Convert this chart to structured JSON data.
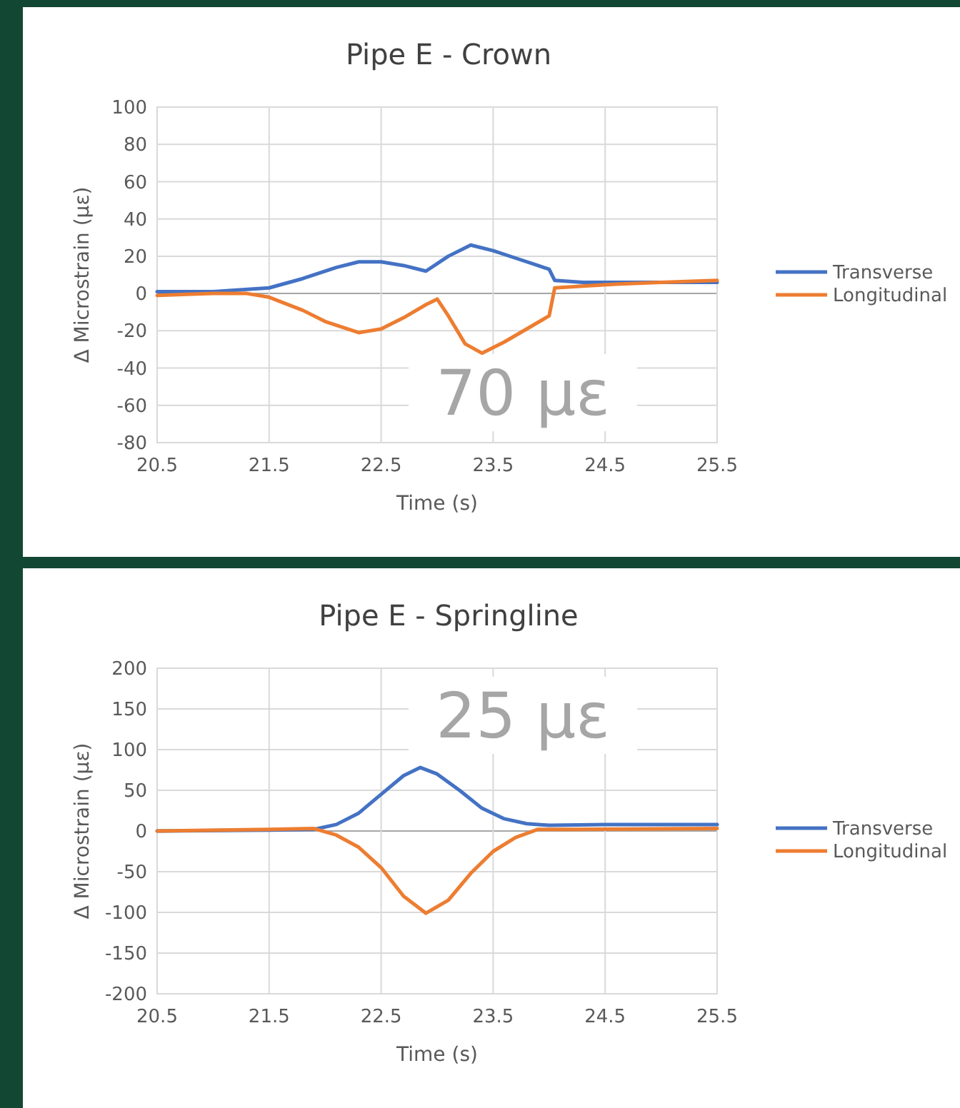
{
  "chart_data": [
    {
      "type": "line",
      "title": "Pipe E - Crown",
      "xlabel": "Time (s)",
      "ylabel": "Δ Microstrain (με)",
      "xlim": [
        20.5,
        25.5
      ],
      "xticks": [
        20.5,
        21.5,
        22.5,
        23.5,
        24.5,
        25.5
      ],
      "ylim": [
        -80,
        100
      ],
      "yticks": [
        -80,
        -60,
        -40,
        -20,
        0,
        20,
        40,
        60,
        80,
        100
      ],
      "grid": true,
      "legend": "right",
      "line_style": "solid",
      "marker": "none",
      "annotations": [
        "70 με"
      ],
      "series": [
        {
          "name": "Transverse",
          "color": "#4472c4",
          "x": [
            20.5,
            21,
            21.5,
            21.8,
            22.1,
            22.3,
            22.5,
            22.7,
            22.9,
            23.1,
            23.3,
            23.5,
            23.7,
            23.9,
            24,
            24.05,
            24.3,
            24.6,
            25,
            25.5
          ],
          "values": [
            1,
            1,
            3,
            8,
            14,
            17,
            17,
            15,
            12,
            20,
            26,
            23,
            19,
            15,
            13,
            7,
            6,
            6,
            6,
            6
          ]
        },
        {
          "name": "Longitudinal",
          "color": "#ed7d31",
          "x": [
            20.5,
            21,
            21.3,
            21.5,
            21.8,
            22,
            22.3,
            22.5,
            22.7,
            22.9,
            23,
            23.1,
            23.25,
            23.4,
            23.6,
            23.8,
            24,
            24.05,
            24.3,
            24.6,
            25,
            25.5
          ],
          "values": [
            -1,
            0,
            0,
            -2,
            -9,
            -15,
            -21,
            -19,
            -13,
            -6,
            -3,
            -12,
            -27,
            -32,
            -26,
            -19,
            -12,
            3,
            4,
            5,
            6,
            7
          ]
        }
      ]
    },
    {
      "type": "line",
      "title": "Pipe E - Springline",
      "xlabel": "Time (s)",
      "ylabel": "Δ Microstrain (με)",
      "xlim": [
        20.5,
        25.5
      ],
      "xticks": [
        20.5,
        21.5,
        22.5,
        23.5,
        24.5,
        25.5
      ],
      "ylim": [
        -200,
        200
      ],
      "yticks": [
        -200,
        -150,
        -100,
        -50,
        0,
        50,
        100,
        150,
        200
      ],
      "grid": true,
      "legend": "right",
      "line_style": "solid",
      "marker": "none",
      "annotations": [
        "25 με"
      ],
      "series": [
        {
          "name": "Transverse",
          "color": "#4472c4",
          "x": [
            20.5,
            21.5,
            21.9,
            22.1,
            22.3,
            22.5,
            22.7,
            22.85,
            23,
            23.2,
            23.4,
            23.6,
            23.8,
            24,
            24.5,
            25.5
          ],
          "values": [
            0,
            1,
            2,
            8,
            22,
            45,
            68,
            78,
            70,
            50,
            28,
            15,
            9,
            7,
            8,
            8
          ]
        },
        {
          "name": "Longitudinal",
          "color": "#ed7d31",
          "x": [
            20.5,
            21.5,
            21.9,
            22.1,
            22.3,
            22.5,
            22.7,
            22.9,
            23.1,
            23.3,
            23.5,
            23.7,
            23.9,
            24.2,
            25.5
          ],
          "values": [
            0,
            2,
            3,
            -5,
            -20,
            -45,
            -80,
            -101,
            -85,
            -52,
            -25,
            -8,
            2,
            2,
            3
          ]
        }
      ]
    }
  ]
}
